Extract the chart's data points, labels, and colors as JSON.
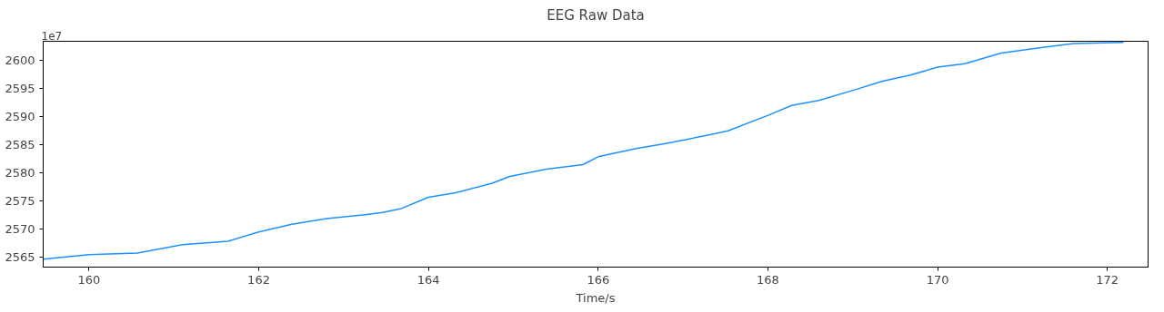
{
  "chart_data": {
    "type": "line",
    "title": "EEG Raw Data",
    "xlabel": "Time/s",
    "annotations": [
      "1e7"
    ],
    "x": [
      159.46,
      160.0,
      160.57,
      161.1,
      161.64,
      161.99,
      162.39,
      162.8,
      163.25,
      163.46,
      163.68,
      164.0,
      164.32,
      164.75,
      164.96,
      165.39,
      165.82,
      166.0,
      166.46,
      166.78,
      167.32,
      167.53,
      168.01,
      168.28,
      168.6,
      169.03,
      169.35,
      169.68,
      170.0,
      170.32,
      170.75,
      171.18,
      171.6,
      172.19
    ],
    "series": [
      {
        "color": "#1e90ff",
        "values": [
          2564.7,
          2565.5,
          2565.8,
          2567.3,
          2567.9,
          2569.5,
          2570.9,
          2571.9,
          2572.6,
          2573.0,
          2573.7,
          2575.7,
          2576.5,
          2578.2,
          2579.4,
          2580.7,
          2581.5,
          2582.9,
          2584.4,
          2585.2,
          2586.8,
          2587.5,
          2590.3,
          2592.0,
          2592.9,
          2594.8,
          2596.3,
          2597.4,
          2598.8,
          2599.4,
          2601.3,
          2602.2,
          2603.0,
          2603.2
        ]
      }
    ],
    "xlim": [
      159.46,
      172.48
    ],
    "ylim": [
      2563.3,
      2603.4
    ],
    "xticks": [
      160,
      162,
      164,
      166,
      168,
      170,
      172
    ],
    "yticks": [
      2565,
      2570,
      2575,
      2580,
      2585,
      2590,
      2595,
      2600
    ],
    "grid": false
  }
}
